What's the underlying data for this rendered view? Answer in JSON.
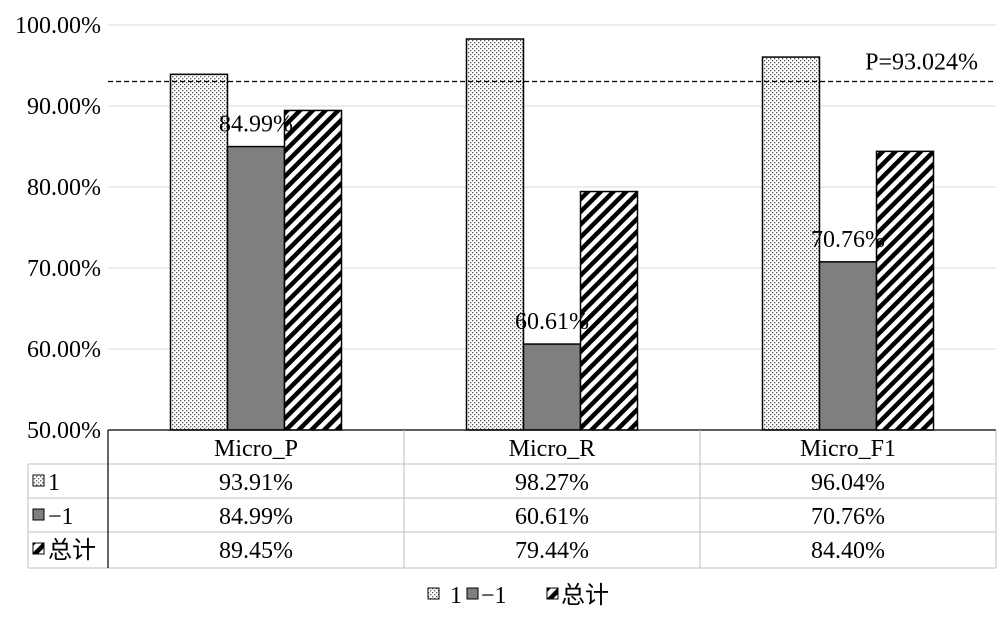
{
  "chart_data": {
    "type": "bar",
    "categories": [
      "Micro_P",
      "Micro_R",
      "Micro_F1"
    ],
    "series": [
      {
        "name": "1",
        "values": [
          93.91,
          98.27,
          96.04
        ],
        "labels": [
          "93.91%",
          "98.27%",
          "96.04%"
        ],
        "pattern": "dots"
      },
      {
        "name": "−1",
        "values": [
          84.99,
          60.61,
          70.76
        ],
        "labels": [
          "84.99%",
          "60.61%",
          "70.76%"
        ],
        "pattern": "solid-gray"
      },
      {
        "name": "总计",
        "values": [
          89.45,
          79.44,
          84.4
        ],
        "labels": [
          "89.45%",
          "79.44%",
          "84.40%"
        ],
        "pattern": "diagonal"
      }
    ],
    "data_labels": {
      "series_index": 1,
      "labels": [
        "84.99%",
        "60.61%",
        "70.76%"
      ]
    },
    "ylim": [
      50,
      100
    ],
    "yticks": [
      50,
      60,
      70,
      80,
      90,
      100
    ],
    "ytick_labels": [
      "50.00%",
      "60.00%",
      "70.00%",
      "80.00%",
      "90.00%",
      "100.00%"
    ],
    "reference_line": {
      "value": 93.024,
      "label": "P=93.024%",
      "style": "dashed"
    },
    "grid": true,
    "data_table": true,
    "legend": {
      "placement": "bottom",
      "entries": [
        "1",
        "−1",
        "总计"
      ]
    },
    "colors": {
      "bar_gray": "#7f7f7f",
      "grid": "#d9d9d9",
      "pattern_fg": "#000000"
    },
    "title": "",
    "xlabel": "",
    "ylabel": ""
  }
}
